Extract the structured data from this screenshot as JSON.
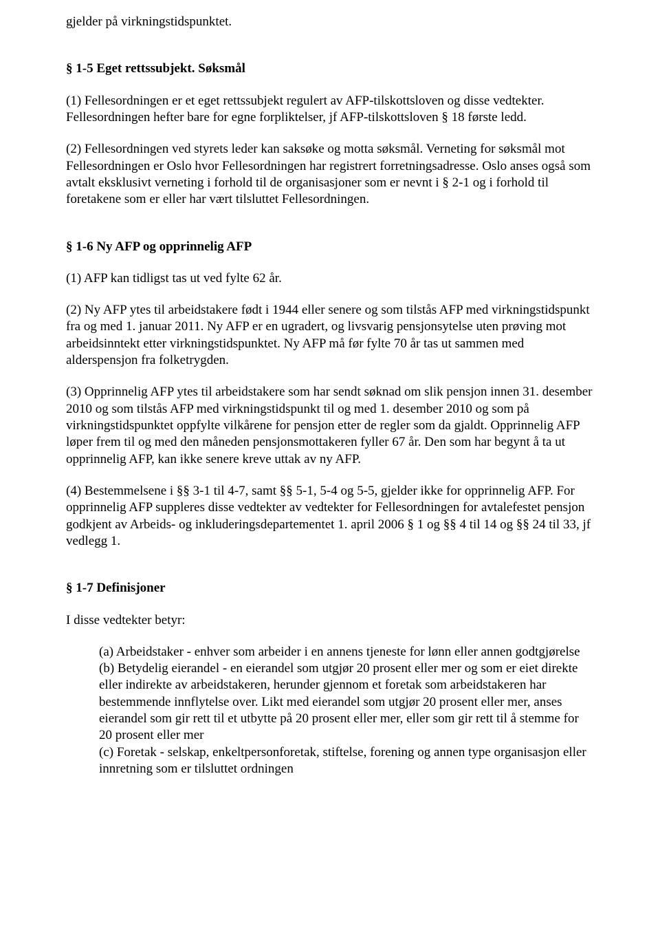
{
  "p0": "gjelder på virkningstidspunktet.",
  "h1": "§ 1-5 Eget rettssubjekt. Søksmål",
  "p1": "(1) Fellesordningen er et eget rettssubjekt regulert av AFP-tilskottsloven og disse vedtekter. Fellesordningen hefter bare for egne forpliktelser, jf AFP-tilskottsloven § 18 første ledd.",
  "p2": "(2) Fellesordningen ved styrets leder kan saksøke og motta søksmål. Verneting for søksmål mot Fellesordningen er Oslo hvor Fellesordningen har registrert forretningsadresse. Oslo anses også som avtalt eksklusivt verneting i forhold til de organisasjoner som er nevnt i § 2-1 og i forhold til foretakene som er eller har vært tilsluttet Fellesordningen.",
  "h2": "§ 1-6 Ny AFP og opprinnelig AFP",
  "p3": "(1) AFP kan tidligst tas ut ved fylte 62 år.",
  "p4": "(2) Ny AFP ytes til arbeidstakere født i 1944 eller senere og som tilstås AFP med virkningstidspunkt fra og med 1. januar 2011. Ny AFP er en ugradert, og livsvarig pensjonsytelse uten prøving mot arbeidsinntekt etter virkningstidspunktet. Ny AFP må før fylte 70 år tas ut sammen med alderspensjon fra folketrygden.",
  "p5": "(3) Opprinnelig AFP ytes til arbeidstakere som har sendt søknad om slik pensjon innen 31. desember 2010 og som tilstås AFP med virkningstidspunkt til og med 1. desember 2010 og som på virkningstidspunktet oppfylte vilkårene for pensjon etter de regler som da gjaldt. Opprinnelig AFP løper frem til og med den måneden pensjonsmottakeren fyller 67 år. Den som har begynt å ta ut opprinnelig AFP, kan ikke senere kreve uttak av ny AFP.",
  "p6": "(4) Bestemmelsene i §§ 3-1 til 4-7, samt §§ 5-1, 5-4 og 5-5, gjelder ikke for opprinnelig AFP. For opprinnelig AFP suppleres disse vedtekter av vedtekter for Fellesordningen for avtalefestet pensjon godkjent av Arbeids- og inkluderingsdepartementet 1. april 2006 § 1 og §§ 4 til 14 og §§ 24 til 33, jf vedlegg 1.",
  "h3": "§ 1-7 Definisjoner",
  "p7": "I disse vedtekter betyr:",
  "defA": "(a) Arbeidstaker - enhver som arbeider i en annens tjeneste for lønn eller annen godtgjørelse",
  "defB": "(b) Betydelig eierandel - en eierandel som utgjør 20 prosent eller mer og som er eiet direkte eller indirekte av arbeidstakeren, herunder gjennom et foretak som arbeidstakeren har bestemmende innflytelse over. Likt med eierandel som utgjør 20 prosent eller mer, anses eierandel som gir rett til et utbytte på 20 prosent eller mer, eller som gir rett til å stemme for 20 prosent eller mer",
  "defC": "(c) Foretak - selskap, enkeltpersonforetak, stiftelse, forening og annen type organisasjon eller innretning som er tilsluttet ordningen"
}
